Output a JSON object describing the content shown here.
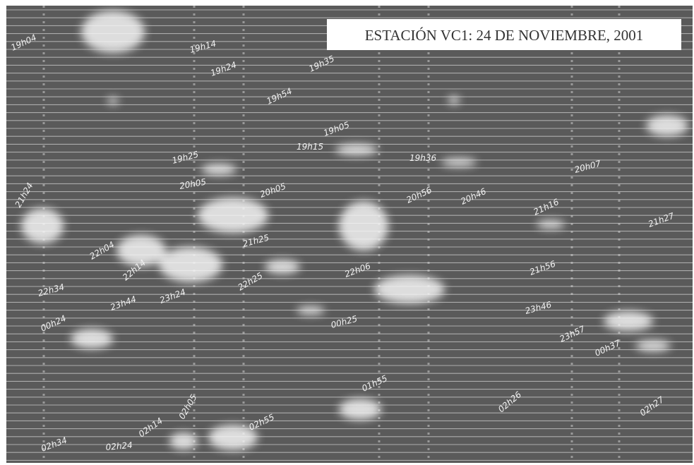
{
  "header": {
    "title": "ESTACIÓN VC1: 24 DE NOVIEMBRE, 2001"
  },
  "annotations": [
    "19h04",
    "19h14",
    "19h24",
    "19h35",
    "19h54",
    "19h05",
    "19h15",
    "19h25",
    "19h36",
    "20h07",
    "20h05",
    "20h05",
    "20h56",
    "20h46",
    "21h16",
    "21h24",
    "21h27",
    "21h25",
    "22h04",
    "22h14",
    "22h06",
    "21h56",
    "22h25",
    "22h34",
    "23h44",
    "23h24",
    "23h46",
    "23h57",
    "00h24",
    "00h25",
    "00h37",
    "01h55",
    "02h55",
    "02h05",
    "02h14",
    "02h24",
    "02h34",
    "02h26",
    "02h27"
  ]
}
